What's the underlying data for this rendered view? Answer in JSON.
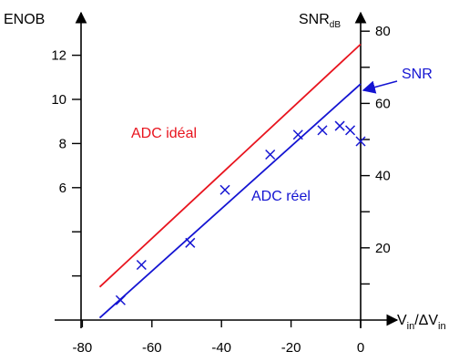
{
  "chart_data": {
    "type": "line",
    "x_axis": {
      "label_main": "V",
      "label_sub1": "in",
      "label_mid": "/ΔV",
      "label_sub2": "in",
      "ticks": [
        -80,
        -60,
        -40,
        -20,
        0
      ],
      "range": [
        -88,
        0
      ]
    },
    "y_left": {
      "label": "ENOB",
      "ticks": [
        6,
        8,
        10,
        12
      ],
      "range": [
        0,
        13.5
      ]
    },
    "y_right": {
      "label_main": "SNR",
      "label_sub": "dB",
      "ticks": [
        20,
        40,
        60,
        80
      ],
      "range": [
        0,
        83
      ]
    },
    "series": [
      {
        "name": "ADC idéal",
        "color": "#e8141e",
        "style": "line",
        "x": [
          -75,
          0
        ],
        "y": [
          1.5,
          12.5
        ]
      },
      {
        "name": "ADC réel",
        "color": "#1414d2",
        "style": "line",
        "x": [
          -75,
          0
        ],
        "y": [
          0.1,
          10.7
        ]
      },
      {
        "name": "",
        "color": "#1414d2",
        "style": "markers",
        "marker": "x",
        "x": [
          -69,
          -63,
          -49,
          -39,
          -26,
          -18,
          -11,
          -6,
          -3,
          0
        ],
        "y": [
          0.9,
          2.5,
          3.5,
          5.9,
          7.5,
          8.4,
          8.6,
          8.8,
          8.6,
          8.1
        ]
      }
    ],
    "annotations": {
      "ideal_label": "ADC idéal",
      "real_label": "ADC réel",
      "snr_label": "SNR"
    }
  }
}
